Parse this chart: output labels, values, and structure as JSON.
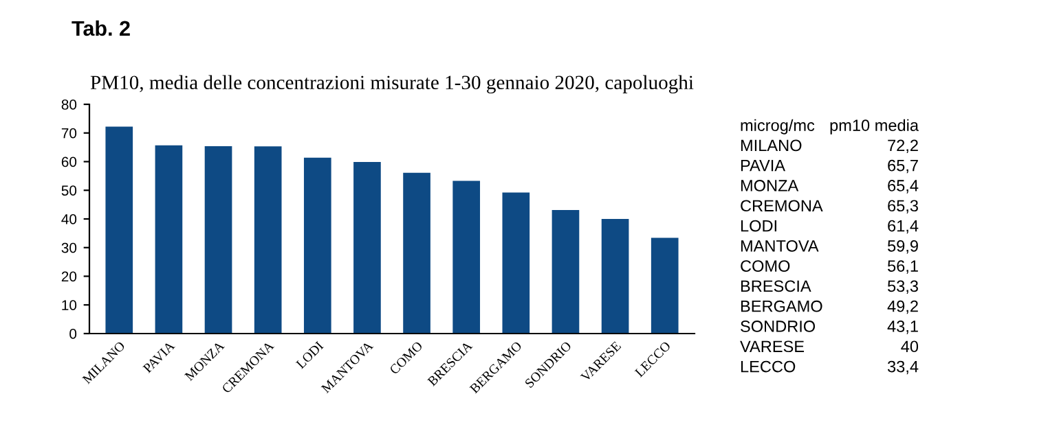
{
  "chart_data": [
    {
      "type": "bar",
      "title": "PM10, media delle concentrazioni misurate 1-30 gennaio 2020, capoluoghi",
      "categories": [
        "MILANO",
        "PAVIA",
        "MONZA",
        "CREMONA",
        "LODI",
        "MANTOVA",
        "COMO",
        "BRESCIA",
        "BERGAMO",
        "SONDRIO",
        "VARESE",
        "LECCO"
      ],
      "values": [
        72.2,
        65.7,
        65.4,
        65.3,
        61.4,
        59.9,
        56.1,
        53.3,
        49.2,
        43.1,
        40,
        33.4
      ],
      "color": "#0e4a84",
      "ylim": [
        0,
        80
      ],
      "yticks": [
        0,
        10,
        20,
        30,
        40,
        50,
        60,
        70,
        80
      ],
      "grid": false,
      "annotations": [
        "Tab. 2"
      ]
    },
    {
      "type": "other",
      "xlabel": "microg/mc",
      "ylabel": "pm10 media",
      "categories": [
        "MILANO",
        "PAVIA",
        "MONZA",
        "CREMONA",
        "LODI",
        "MANTOVA",
        "COMO",
        "BRESCIA",
        "BERGAMO",
        "SONDRIO",
        "VARESE",
        "LECCO"
      ],
      "value_labels": [
        "72,2",
        "65,7",
        "65,4",
        "65,3",
        "61,4",
        "59,9",
        "56,1",
        "53,3",
        "49,2",
        "43,1",
        "40",
        "33,4"
      ]
    }
  ]
}
